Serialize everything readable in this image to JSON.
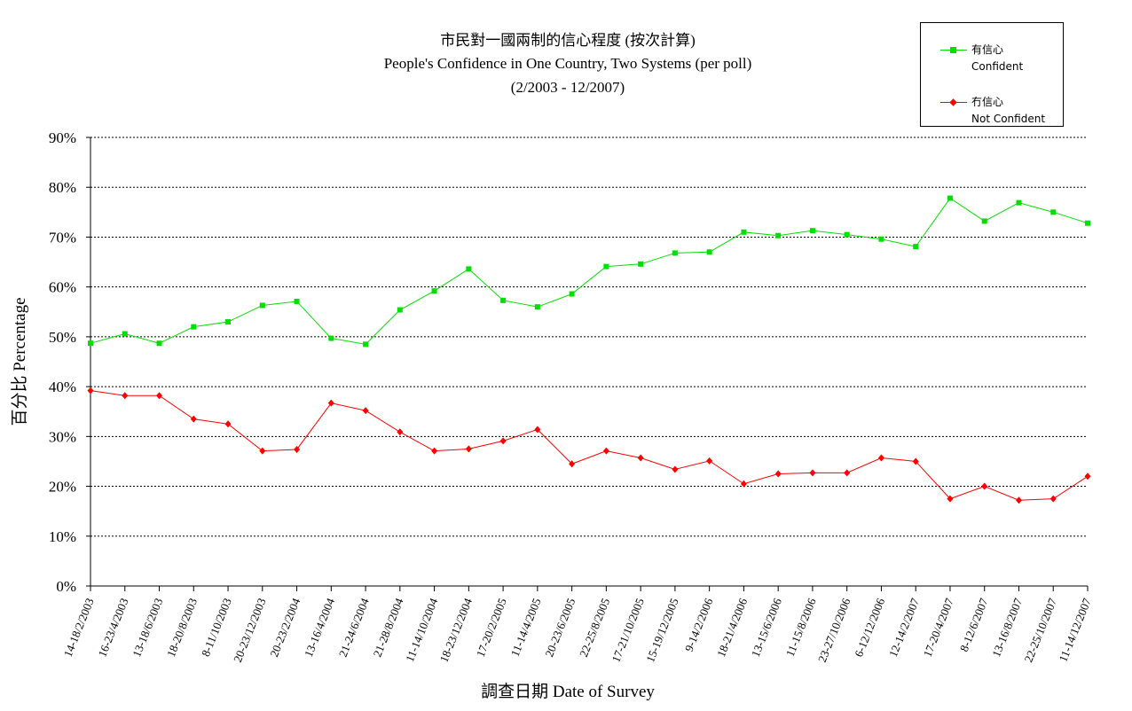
{
  "chart_data": {
    "type": "line",
    "title_zh": "市民對一國兩制的信心程度 (按次計算)",
    "title_en": "People's Confidence in One Country, Two Systems (per poll)",
    "subtitle": "(2/2003 - 12/2007)",
    "xlabel": "調查日期 Date of Survey",
    "ylabel": "百分比 Percentage",
    "ylim": [
      0,
      90
    ],
    "yticks": [
      "0%",
      "10%",
      "20%",
      "30%",
      "40%",
      "50%",
      "60%",
      "70%",
      "80%",
      "90%"
    ],
    "grid": "horizontal dotted",
    "legend_position": "top-right",
    "categories": [
      "14-18/2/2003",
      "16-23/4/2003",
      "13-18/6/2003",
      "18-20/8/2003",
      "8-11/10/2003",
      "20-23/12/2003",
      "20-23/2/2004",
      "13-16/4/2004",
      "21-24/6/2004",
      "21-28/8/2004",
      "11-14/10/2004",
      "18-23/12/2004",
      "17-20/2/2005",
      "11-14/4/2005",
      "20-23/6/2005",
      "22-25/8/2005",
      "17-21/10/2005",
      "15-19/12/2005",
      "9-14/2/2006",
      "18-21/4/2006",
      "13-15/6/2006",
      "11-15/8/2006",
      "23-27/10/2006",
      "6-12/12/2006",
      "12-14/2/2007",
      "17-20/4/2007",
      "8-12/6/2007",
      "13-16/8/2007",
      "22-25/10/2007",
      "11-14/12/2007"
    ],
    "series": [
      {
        "name_zh": "有信心",
        "name_en": "Confident",
        "color": "#00e000",
        "marker": "square",
        "values": [
          48.7,
          50.6,
          48.7,
          52.0,
          53.0,
          56.3,
          57.1,
          49.7,
          48.5,
          55.4,
          59.2,
          63.6,
          57.3,
          56.0,
          58.6,
          64.1,
          64.6,
          66.8,
          67.0,
          71.0,
          70.3,
          71.3,
          70.5,
          69.6,
          68.1,
          77.8,
          73.2,
          76.9,
          75.0,
          72.8
        ]
      },
      {
        "name_zh": "冇信心",
        "name_en": "Not Confident",
        "color": "#ff0000",
        "marker": "diamond",
        "values": [
          39.2,
          38.2,
          38.2,
          33.5,
          32.5,
          27.1,
          27.4,
          36.7,
          35.2,
          30.9,
          27.1,
          27.5,
          29.1,
          31.4,
          24.5,
          27.1,
          25.7,
          23.4,
          25.1,
          20.5,
          22.5,
          22.7,
          22.7,
          25.7,
          25.0,
          17.5,
          20.0,
          17.2,
          17.5,
          22.0
        ]
      }
    ]
  }
}
